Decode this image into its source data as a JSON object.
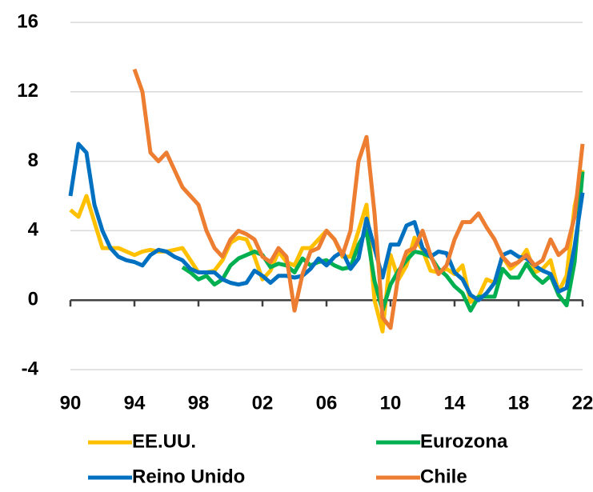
{
  "chart_data": {
    "type": "line",
    "x": [
      1990,
      1990.5,
      1991,
      1991.5,
      1992,
      1992.5,
      1993,
      1993.5,
      1994,
      1994.5,
      1995,
      1995.5,
      1996,
      1996.5,
      1997,
      1997.5,
      1998,
      1998.5,
      1999,
      1999.5,
      2000,
      2000.5,
      2001,
      2001.5,
      2002,
      2002.5,
      2003,
      2003.5,
      2004,
      2004.5,
      2005,
      2005.5,
      2006,
      2006.5,
      2007,
      2007.5,
      2008,
      2008.5,
      2009,
      2009.5,
      2010,
      2010.5,
      2011,
      2011.5,
      2012,
      2012.5,
      2013,
      2013.5,
      2014,
      2014.5,
      2015,
      2015.5,
      2016,
      2016.5,
      2017,
      2017.5,
      2018,
      2018.5,
      2019,
      2019.5,
      2020,
      2020.5,
      2021,
      2021.5,
      2022
    ],
    "series": [
      {
        "name": "EE.UU.",
        "color": "#ffc000",
        "values": [
          5.2,
          4.8,
          6.0,
          4.5,
          3.0,
          3.0,
          3.0,
          2.8,
          2.6,
          2.8,
          2.9,
          2.8,
          2.8,
          2.9,
          3.0,
          2.3,
          1.6,
          1.6,
          1.7,
          2.3,
          3.3,
          3.6,
          3.5,
          2.5,
          1.2,
          1.7,
          2.8,
          2.2,
          2.0,
          3.0,
          3.0,
          3.5,
          4.0,
          3.5,
          2.5,
          2.5,
          4.0,
          5.5,
          0.0,
          -1.8,
          2.6,
          1.2,
          2.0,
          3.6,
          2.9,
          1.7,
          1.6,
          1.8,
          1.5,
          2.0,
          -0.1,
          0.2,
          1.2,
          1.0,
          2.5,
          1.8,
          2.2,
          2.9,
          1.6,
          1.8,
          2.3,
          0.5,
          1.4,
          5.4,
          7.5
        ]
      },
      {
        "name": "Eurozona",
        "color": "#00b050",
        "values": [
          null,
          null,
          null,
          null,
          null,
          null,
          null,
          null,
          null,
          null,
          null,
          null,
          null,
          null,
          1.9,
          1.6,
          1.2,
          1.4,
          0.9,
          1.2,
          2.0,
          2.4,
          2.6,
          2.8,
          2.6,
          1.9,
          2.1,
          2.0,
          1.6,
          2.4,
          2.0,
          2.2,
          2.3,
          2.0,
          1.8,
          1.9,
          3.2,
          4.0,
          1.1,
          -0.6,
          0.9,
          1.7,
          2.3,
          2.8,
          2.7,
          2.5,
          1.8,
          1.4,
          0.8,
          0.4,
          -0.6,
          0.2,
          0.2,
          0.2,
          1.8,
          1.3,
          1.3,
          2.1,
          1.4,
          1.0,
          1.4,
          0.3,
          -0.3,
          2.2,
          7.4
        ]
      },
      {
        "name": "Reino Unido",
        "color": "#0070c0",
        "values": [
          6.0,
          9.0,
          8.5,
          5.5,
          4.0,
          3.0,
          2.5,
          2.3,
          2.2,
          2.0,
          2.6,
          2.9,
          2.8,
          2.5,
          2.3,
          1.8,
          1.6,
          1.6,
          1.6,
          1.2,
          1.0,
          0.9,
          1.0,
          1.7,
          1.4,
          1.0,
          1.4,
          1.4,
          1.3,
          1.4,
          1.8,
          2.4,
          2.0,
          2.5,
          2.8,
          1.8,
          2.4,
          4.7,
          3.0,
          1.3,
          3.2,
          3.2,
          4.3,
          4.5,
          3.0,
          2.5,
          2.8,
          2.7,
          1.6,
          1.2,
          0.3,
          0.0,
          0.4,
          1.0,
          2.6,
          2.8,
          2.5,
          2.4,
          2.0,
          1.7,
          1.5,
          0.5,
          0.7,
          3.1,
          6.2
        ]
      },
      {
        "name": "Chile",
        "color": "#ed7d31",
        "values": [
          null,
          null,
          null,
          null,
          null,
          null,
          null,
          null,
          13.3,
          12.0,
          8.5,
          8.0,
          8.5,
          7.5,
          6.5,
          6.0,
          5.5,
          4.0,
          3.0,
          2.5,
          3.5,
          4.0,
          3.8,
          3.5,
          2.5,
          2.2,
          3.0,
          2.5,
          -0.6,
          1.5,
          2.8,
          3.0,
          4.0,
          3.5,
          2.6,
          4.0,
          8.0,
          9.4,
          5.0,
          -1.0,
          -1.6,
          1.5,
          2.8,
          3.0,
          4.0,
          2.6,
          1.5,
          2.0,
          3.5,
          4.5,
          4.5,
          5.0,
          4.2,
          3.5,
          2.5,
          2.0,
          2.2,
          2.6,
          2.0,
          2.3,
          3.5,
          2.6,
          3.0,
          4.8,
          9.0
        ]
      }
    ],
    "xlim": [
      1990,
      2022
    ],
    "xticks": [
      {
        "value": 1990,
        "label": "90"
      },
      {
        "value": 1994,
        "label": "94"
      },
      {
        "value": 1998,
        "label": "98"
      },
      {
        "value": 2002,
        "label": "02"
      },
      {
        "value": 2006,
        "label": "06"
      },
      {
        "value": 2010,
        "label": "10"
      },
      {
        "value": 2014,
        "label": "14"
      },
      {
        "value": 2018,
        "label": "18"
      },
      {
        "value": 2022,
        "label": "22"
      }
    ],
    "ylim": [
      -4,
      16
    ],
    "yticks": [
      -4,
      0,
      4,
      8,
      12,
      16
    ],
    "grid": true
  }
}
